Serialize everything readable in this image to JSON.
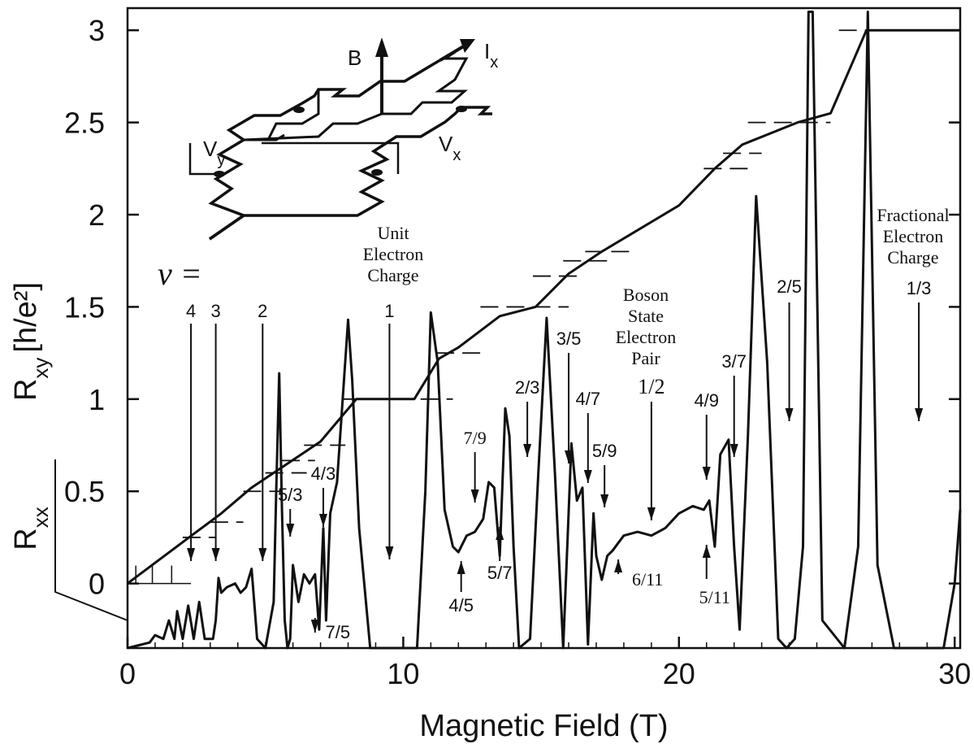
{
  "chart_data": {
    "type": "line",
    "xlabel": "Magnetic Field (T)",
    "ylabel": "R_xy [h/e²]",
    "ylabel_secondary": "R_xx",
    "xlim": [
      0,
      30.2
    ],
    "ylim": [
      -0.35,
      3.12
    ],
    "x_ticks": [
      0,
      10,
      20,
      30
    ],
    "x_tick_labels": [
      "0",
      "10",
      "20",
      "30"
    ],
    "y_ticks": [
      0,
      0.5,
      1,
      1.5,
      2,
      2.5,
      3
    ],
    "y_tick_labels": [
      "0",
      "0.5",
      "1",
      "1.5",
      "2",
      "2.5",
      "3"
    ],
    "grid": false,
    "series": [
      {
        "key": "rxy",
        "x": [
          0,
          2.5,
          3.4,
          4.5,
          5.5,
          7.0,
          8.3,
          10.4,
          11.3,
          12.0,
          13.5,
          14.8,
          16.0,
          17.2,
          20.0,
          21.3,
          22.3,
          24.3,
          25.5,
          26.8,
          30.2
        ],
        "y": [
          0,
          0.28,
          0.38,
          0.52,
          0.62,
          0.77,
          1.0,
          1.0,
          1.22,
          1.28,
          1.45,
          1.5,
          1.68,
          1.8,
          2.05,
          2.25,
          2.38,
          2.5,
          2.55,
          3.0,
          3.0
        ]
      },
      {
        "key": "rxx",
        "x": [
          0,
          0.8,
          1.0,
          1.3,
          1.5,
          1.7,
          1.8,
          2.0,
          2.2,
          2.4,
          2.6,
          2.8,
          3.1,
          3.2,
          3.3,
          3.4,
          3.6,
          3.9,
          4.1,
          4.3,
          4.5,
          4.7,
          5.0,
          5.3,
          5.4,
          5.5,
          5.6,
          5.7,
          5.8,
          5.9,
          6.0,
          6.2,
          6.4,
          6.6,
          6.8,
          6.95,
          7.1,
          7.2,
          7.35,
          7.6,
          7.85,
          8.0,
          8.15,
          8.4,
          8.8,
          9.3,
          10.5,
          10.8,
          11.0,
          11.25,
          11.5,
          11.8,
          12.0,
          12.3,
          12.6,
          12.9,
          13.1,
          13.3,
          13.5,
          13.7,
          13.85,
          14.0,
          14.2,
          14.6,
          14.9,
          15.2,
          15.5,
          15.8,
          16.1,
          16.3,
          16.5,
          16.7,
          16.9,
          17.0,
          17.2,
          17.4,
          17.6,
          17.8,
          18.0,
          18.5,
          19.0,
          19.5,
          20.0,
          20.5,
          20.9,
          21.1,
          21.3,
          21.5,
          21.8,
          22.0,
          22.2,
          22.5,
          22.8,
          23.2,
          23.6,
          23.9,
          24.2,
          24.5,
          24.7,
          24.85,
          25.2,
          26.0,
          26.5,
          26.85,
          27.2,
          27.8,
          28.8,
          29.6,
          30.0,
          30.2
        ],
        "y": [
          -0.35,
          -0.32,
          -0.28,
          -0.3,
          -0.2,
          -0.3,
          -0.15,
          -0.3,
          -0.12,
          -0.3,
          -0.1,
          -0.3,
          -0.3,
          -0.2,
          0.03,
          -0.05,
          -0.02,
          0.0,
          -0.05,
          -0.02,
          0.08,
          -0.3,
          -0.35,
          -0.1,
          0.55,
          1.14,
          0.4,
          -0.2,
          -0.35,
          -0.3,
          0.1,
          -0.1,
          0.05,
          0.0,
          0.05,
          -0.25,
          0.3,
          -0.2,
          0.38,
          0.55,
          1.1,
          1.43,
          1.1,
          0.3,
          -0.35,
          -0.35,
          -0.35,
          0.5,
          1.47,
          1.2,
          0.4,
          0.2,
          0.17,
          0.26,
          0.28,
          0.35,
          0.55,
          0.52,
          0.15,
          0.95,
          0.8,
          0.2,
          -0.35,
          -0.3,
          0.6,
          1.44,
          0.6,
          -0.35,
          0.76,
          0.45,
          0.52,
          -0.33,
          0.38,
          0.15,
          0.02,
          0.15,
          0.18,
          0.22,
          0.26,
          0.28,
          0.26,
          0.3,
          0.38,
          0.42,
          0.4,
          0.45,
          0.2,
          0.7,
          0.78,
          0.2,
          -0.25,
          0.8,
          2.1,
          1.2,
          -0.3,
          -0.35,
          -0.3,
          0.2,
          3.1,
          3.1,
          -0.2,
          -0.35,
          0.2,
          3.1,
          0.1,
          -0.35,
          -0.35,
          -0.35,
          0.0,
          0.4
        ]
      }
    ],
    "plateau_markers": [
      {
        "y": 0.25,
        "x": [
          2.0,
          3.2
        ]
      },
      {
        "y": 0.333,
        "x": [
          3.0,
          4.2
        ]
      },
      {
        "y": 0.5,
        "x": [
          4.2,
          5.6
        ]
      },
      {
        "y": 0.6,
        "x": [
          5.0,
          6.5
        ]
      },
      {
        "y": 0.667,
        "x": [
          5.6,
          6.8
        ]
      },
      {
        "y": 0.75,
        "x": [
          6.4,
          7.9
        ]
      },
      {
        "y": 1.0,
        "x": [
          7.8,
          11.8
        ]
      },
      {
        "y": 1.25,
        "x": [
          11.2,
          12.8
        ]
      },
      {
        "y": 1.5,
        "x": [
          12.8,
          16.0
        ]
      },
      {
        "y": 1.667,
        "x": [
          14.7,
          16.5
        ]
      },
      {
        "y": 1.75,
        "x": [
          15.8,
          17.6
        ]
      },
      {
        "y": 1.8,
        "x": [
          16.6,
          18.2
        ]
      },
      {
        "y": 2.25,
        "x": [
          20.9,
          22.5
        ]
      },
      {
        "y": 2.333,
        "x": [
          21.6,
          23.0
        ]
      },
      {
        "y": 2.5,
        "x": [
          22.5,
          25.5
        ]
      },
      {
        "y": 3.0,
        "x": [
          25.8,
          28.8
        ]
      }
    ],
    "annotations": [
      {
        "key": "nu4",
        "text": "4",
        "x": 2.3
      },
      {
        "key": "nu3",
        "text": "3",
        "x": 3.2
      },
      {
        "key": "nu2",
        "text": "2",
        "x": 4.9
      },
      {
        "key": "nu1",
        "text": "1",
        "x": 9.5
      },
      {
        "key": "nu23",
        "text": "2/3",
        "x": 14.5
      },
      {
        "key": "nu35",
        "text": "3/5",
        "x": 16.0
      },
      {
        "key": "nu47",
        "text": "4/7",
        "x": 16.7
      },
      {
        "key": "nu59",
        "text": "5/9",
        "x": 17.3
      },
      {
        "key": "nu12",
        "text": "1/2",
        "x": 19.0
      },
      {
        "key": "nu49",
        "text": "4/9",
        "x": 21.0
      },
      {
        "key": "nu37",
        "text": "3/7",
        "x": 22.0
      },
      {
        "key": "nu25",
        "text": "2/5",
        "x": 24.0
      },
      {
        "key": "nu13",
        "text": "1/3",
        "x": 28.7
      },
      {
        "key": "nu53",
        "text": "5/3",
        "x": 5.9
      },
      {
        "key": "nu43",
        "text": "4/3",
        "x": 7.1
      },
      {
        "key": "nu79",
        "text": "7/9",
        "x": 12.6
      },
      {
        "key": "nu75",
        "text": "7/5",
        "x": 6.8
      },
      {
        "key": "nu45",
        "text": "4/5",
        "x": 12.1
      },
      {
        "key": "nu57",
        "text": "5/7",
        "x": 13.5
      },
      {
        "key": "nu611",
        "text": "6/11",
        "x": 17.8
      },
      {
        "key": "nu511",
        "text": "5/11",
        "x": 21.0
      }
    ],
    "text_labels": {
      "nu_equals": "ν =",
      "unit_electron_charge": [
        "Unit",
        "Electron",
        "Charge"
      ],
      "boson_state": [
        "Boson",
        "State",
        "Electron",
        "Pair"
      ],
      "fractional_charge": [
        "Fractional",
        "Electron",
        "Charge"
      ]
    },
    "inset": {
      "labels": {
        "B": "B",
        "Ix": "I",
        "Ix_sub": "x",
        "Vy": "V",
        "Vy_sub": "y",
        "Vx": "V",
        "Vx_sub": "x"
      }
    }
  }
}
